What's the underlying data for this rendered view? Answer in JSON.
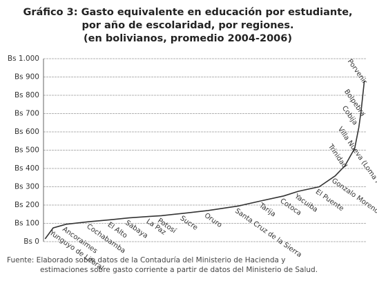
{
  "chart_data": {
    "type": "line",
    "title": "Gráfico 3: Gasto equivalente en educación por estudiante,",
    "subtitle": "por año de escolaridad, por regiones.",
    "subtitle2": "(en bolivianos, promedio 2004-2006)",
    "source": "Fuente: Elaborado sobre datos de la Contaduría del Ministerio de Hacienda y",
    "source2": "estimaciones sobre gasto corriente a partir de datos del Ministerio de Salud.",
    "categories": [
      null,
      "Yunguyo de Litoral",
      "Ancoraimes",
      "Cochabamba",
      "El Alto",
      "Sabaya",
      "La Paz",
      "Potosí",
      "Sucre",
      "Oruro",
      "Santa Cruz de la Sierra",
      "Tarija",
      "Cotoca",
      "Yacuiba",
      "El Puente",
      "Gonzalo Moreno",
      "Trinidad",
      "Villa Nueva (Loma Alta)",
      "Cobija",
      "Bolpebra",
      "Porvenir"
    ],
    "values": [
      15,
      75,
      95,
      110,
      120,
      130,
      138,
      142,
      155,
      170,
      195,
      225,
      250,
      275,
      300,
      360,
      415,
      510,
      625,
      715,
      880
    ],
    "color": "#333333",
    "ylim": [
      0,
      1000
    ],
    "yticks": [
      {
        "value": 0,
        "label": "Bs 0"
      },
      {
        "value": 100,
        "label": "Bs 100"
      },
      {
        "value": 200,
        "label": "Bs 200"
      },
      {
        "value": 300,
        "label": "Bs 300"
      },
      {
        "value": 400,
        "label": "Bs 400"
      },
      {
        "value": 500,
        "label": "Bs 500"
      },
      {
        "value": 600,
        "label": "Bs 600"
      },
      {
        "value": 700,
        "label": "Bs 700"
      },
      {
        "value": 800,
        "label": "Bs 800"
      },
      {
        "value": 900,
        "label": "Bs 900"
      },
      {
        "value": 1000,
        "label": "Bs 1.000"
      }
    ],
    "grid": true
  }
}
